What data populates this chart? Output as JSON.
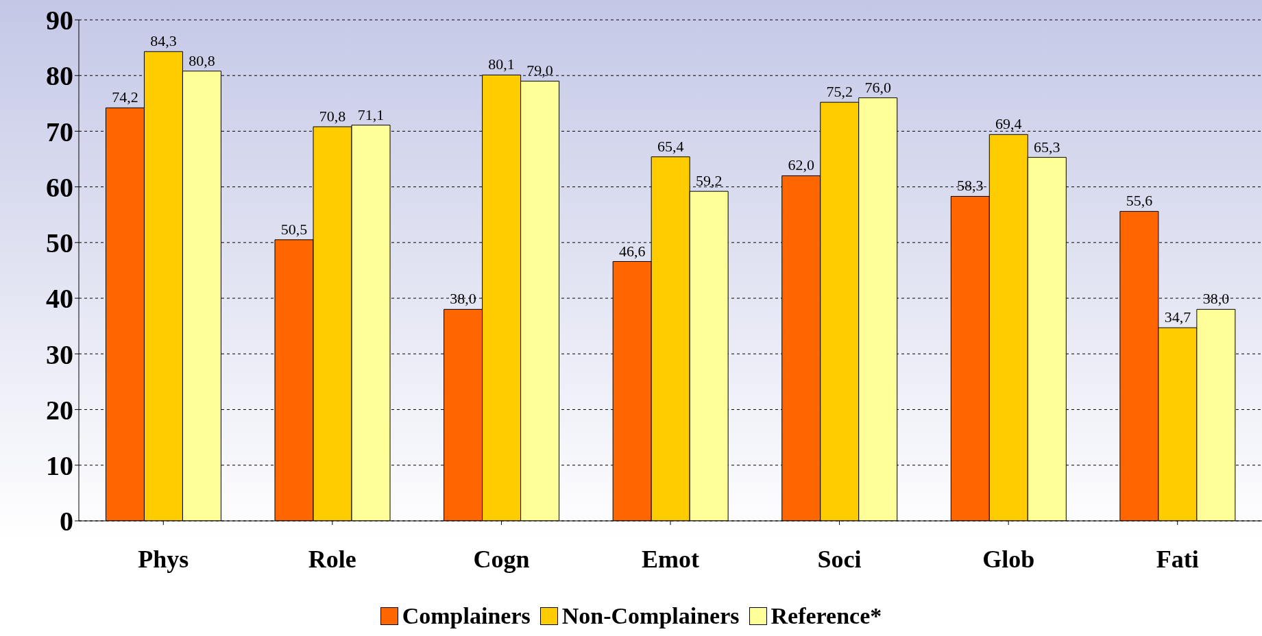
{
  "chart_data": {
    "type": "bar",
    "categories": [
      "Phys",
      "Role",
      "Cogn",
      "Emot",
      "Soci",
      "Glob",
      "Fati"
    ],
    "series": [
      {
        "name": "Complainers",
        "color": "#ff6600",
        "values": [
          74.2,
          50.5,
          38.0,
          46.6,
          62.0,
          58.3,
          55.6
        ],
        "value_labels": [
          "74,2",
          "50,5",
          "38,0",
          "46,6",
          "62,0",
          "58,3",
          "55,6"
        ]
      },
      {
        "name": "Non-Complainers",
        "color": "#ffcc00",
        "values": [
          84.3,
          70.8,
          80.1,
          65.4,
          75.2,
          69.4,
          34.7
        ],
        "value_labels": [
          "84,3",
          "70,8",
          "80,1",
          "65,4",
          "75,2",
          "69,4",
          "34,7"
        ]
      },
      {
        "name": "Reference*",
        "color": "#ffff99",
        "values": [
          80.8,
          71.1,
          79.0,
          59.2,
          76.0,
          65.3,
          38.0
        ],
        "value_labels": [
          "80,8",
          "71,1",
          "79,0",
          "59,2",
          "76,0",
          "65,3",
          "38,0"
        ]
      }
    ],
    "ylim": [
      0,
      90
    ],
    "yticks": [
      0,
      10,
      20,
      30,
      40,
      50,
      60,
      70,
      80,
      90
    ],
    "grid": "y",
    "legend": "bottom"
  }
}
